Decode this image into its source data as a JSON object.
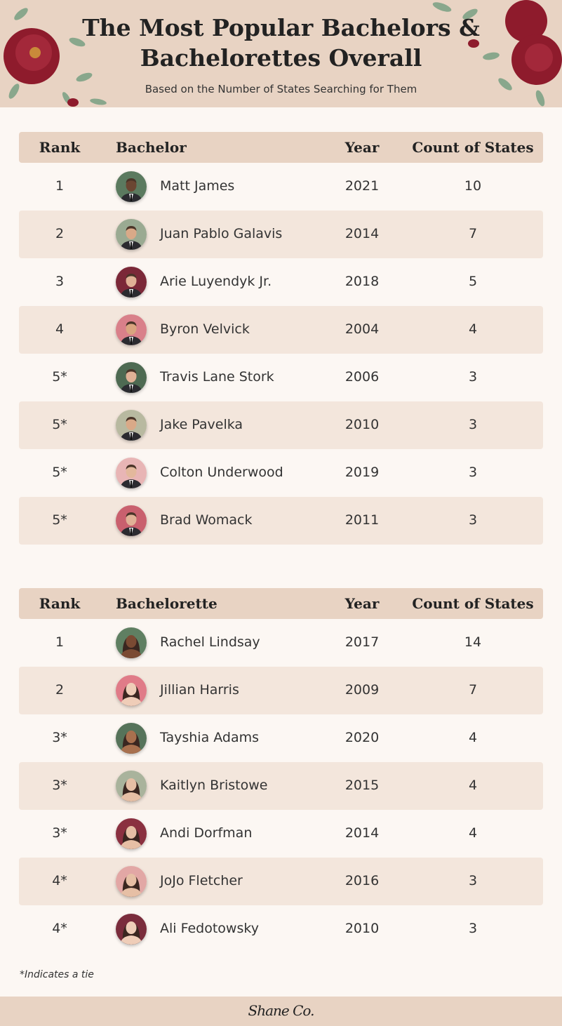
{
  "header": {
    "title_line1": "The Most Popular Bachelors &",
    "title_line2": "Bachelorettes Overall",
    "subtitle": "Based on the Number of States Searching for Them"
  },
  "bachelors": {
    "columns": [
      "Rank",
      "Bachelor",
      "Year",
      "Count of States"
    ],
    "rows": [
      {
        "rank": "1",
        "name": "Matt James",
        "year": "2021",
        "count": "10",
        "avatar_color": "#5b7a5f",
        "skin": "#6b4632"
      },
      {
        "rank": "2",
        "name": "Juan Pablo Galavis",
        "year": "2014",
        "count": "7",
        "avatar_color": "#9aaa92",
        "skin": "#d9a988"
      },
      {
        "rank": "3",
        "name": "Arie Luyendyk Jr.",
        "year": "2018",
        "count": "5",
        "avatar_color": "#7b2838",
        "skin": "#e0b196"
      },
      {
        "rank": "4",
        "name": "Byron Velvick",
        "year": "2004",
        "count": "4",
        "avatar_color": "#d9808a",
        "skin": "#d9a47f"
      },
      {
        "rank": "5*",
        "name": "Travis Lane Stork",
        "year": "2006",
        "count": "3",
        "avatar_color": "#4e6a52",
        "skin": "#e0b196"
      },
      {
        "rank": "5*",
        "name": "Jake Pavelka",
        "year": "2010",
        "count": "3",
        "avatar_color": "#b8b9a0",
        "skin": "#d9a988"
      },
      {
        "rank": "5*",
        "name": "Colton Underwood",
        "year": "2019",
        "count": "3",
        "avatar_color": "#e8b5b5",
        "skin": "#e3b89c"
      },
      {
        "rank": "5*",
        "name": "Brad Womack",
        "year": "2011",
        "count": "3",
        "avatar_color": "#c9606e",
        "skin": "#e0b196"
      }
    ]
  },
  "bachelorettes": {
    "columns": [
      "Rank",
      "Bachelorette",
      "Year",
      "Count of States"
    ],
    "rows": [
      {
        "rank": "1",
        "name": "Rachel Lindsay",
        "year": "2017",
        "count": "14",
        "avatar_color": "#5f7f62",
        "skin": "#7a4a33"
      },
      {
        "rank": "2",
        "name": "Jillian Harris",
        "year": "2009",
        "count": "7",
        "avatar_color": "#e07b88",
        "skin": "#efcdb8"
      },
      {
        "rank": "3*",
        "name": "Tayshia Adams",
        "year": "2020",
        "count": "4",
        "avatar_color": "#56735a",
        "skin": "#a8704e"
      },
      {
        "rank": "3*",
        "name": "Kaitlyn Bristowe",
        "year": "2015",
        "count": "4",
        "avatar_color": "#a9b39c",
        "skin": "#e6bfa5"
      },
      {
        "rank": "3*",
        "name": "Andi Dorfman",
        "year": "2014",
        "count": "4",
        "avatar_color": "#8a3040",
        "skin": "#e6bfa5"
      },
      {
        "rank": "4*",
        "name": "JoJo Fletcher",
        "year": "2016",
        "count": "3",
        "avatar_color": "#e2a7a5",
        "skin": "#e6bfa5"
      },
      {
        "rank": "4*",
        "name": "Ali Fedotowsky",
        "year": "2010",
        "count": "3",
        "avatar_color": "#7a2c3c",
        "skin": "#efcdb8"
      }
    ]
  },
  "footnote": "*Indicates a tie",
  "footer": {
    "logo": "Shane Co."
  },
  "colors": {
    "header_bg": "#e8d3c3",
    "page_bg": "#fcf7f3",
    "alt_row": "#f3e6dc",
    "rose": "#8e1b2c",
    "leaf": "#6f9a78"
  }
}
